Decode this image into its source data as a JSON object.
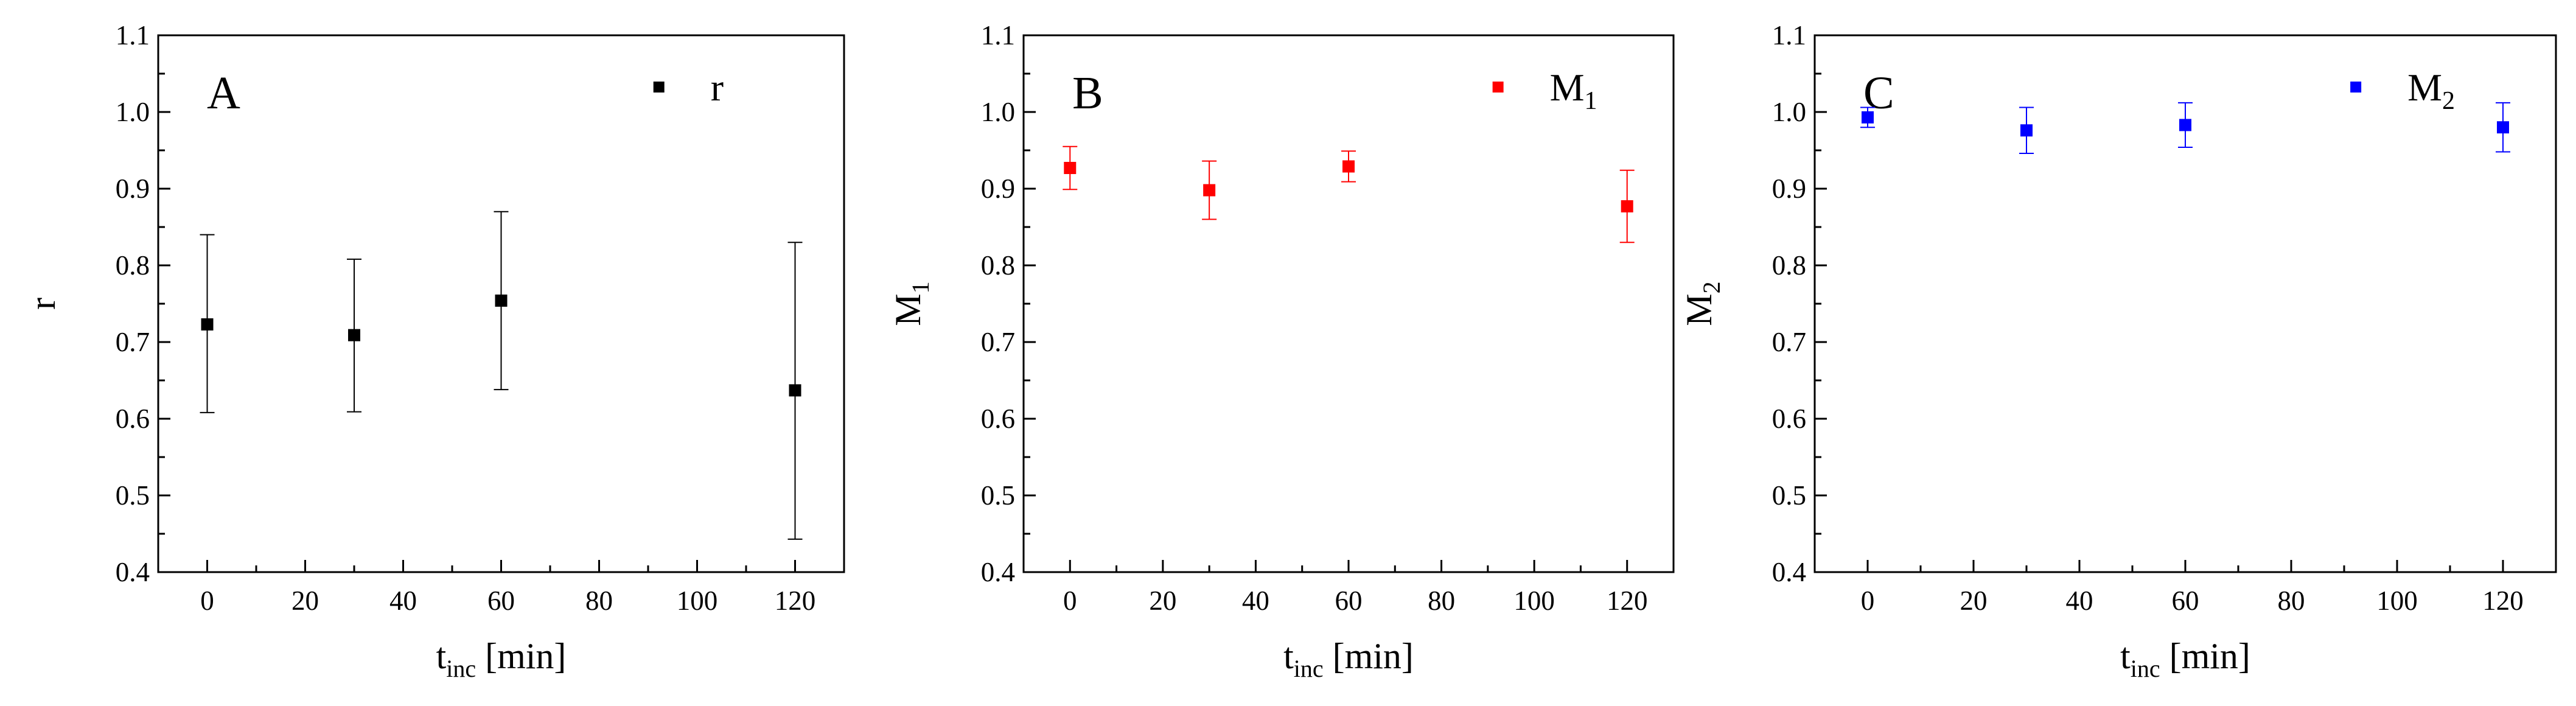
{
  "chart_data": [
    {
      "type": "scatter",
      "panel_label": "A",
      "ylabel": "r",
      "ylabel_sub": "",
      "xlabel": "t",
      "xlabel_sub": "inc",
      "xlabel_unit": " [min]",
      "legend": {
        "text": "r",
        "sub": "",
        "placement": "top-right"
      },
      "color": "#000000",
      "xlim": [
        -10,
        130
      ],
      "ylim": [
        0.4,
        1.1
      ],
      "xticks": [
        0,
        20,
        40,
        60,
        80,
        100,
        120
      ],
      "yticks": [
        0.4,
        0.5,
        0.6,
        0.7,
        0.8,
        0.9,
        1.0,
        1.1
      ],
      "series": [
        {
          "x": [
            0,
            30,
            60,
            120
          ],
          "y": [
            0.723,
            0.709,
            0.754,
            0.637
          ],
          "err_low": [
            0.608,
            0.609,
            0.638,
            0.443
          ],
          "err_high": [
            0.84,
            0.808,
            0.87,
            0.83
          ]
        }
      ]
    },
    {
      "type": "scatter",
      "panel_label": "B",
      "ylabel": "M",
      "ylabel_sub": "1",
      "xlabel": "t",
      "xlabel_sub": "inc",
      "xlabel_unit": " [min]",
      "legend": {
        "text": "M",
        "sub": "1",
        "placement": "top-right"
      },
      "color": "#ff0000",
      "xlim": [
        -10,
        130
      ],
      "ylim": [
        0.4,
        1.1
      ],
      "xticks": [
        0,
        20,
        40,
        60,
        80,
        100,
        120
      ],
      "yticks": [
        0.4,
        0.5,
        0.6,
        0.7,
        0.8,
        0.9,
        1.0,
        1.1
      ],
      "series": [
        {
          "x": [
            0,
            30,
            60,
            120
          ],
          "y": [
            0.927,
            0.898,
            0.929,
            0.877
          ],
          "err_low": [
            0.899,
            0.86,
            0.909,
            0.83
          ],
          "err_high": [
            0.955,
            0.936,
            0.949,
            0.924
          ]
        }
      ]
    },
    {
      "type": "scatter",
      "panel_label": "C",
      "ylabel": "M",
      "ylabel_sub": "2",
      "xlabel": "t",
      "xlabel_sub": "inc",
      "xlabel_unit": " [min]",
      "legend": {
        "text": "M",
        "sub": "2",
        "placement": "top-right"
      },
      "color": "#0000ff",
      "xlim": [
        -10,
        130
      ],
      "ylim": [
        0.4,
        1.1
      ],
      "xticks": [
        0,
        20,
        40,
        60,
        80,
        100,
        120
      ],
      "yticks": [
        0.4,
        0.5,
        0.6,
        0.7,
        0.8,
        0.9,
        1.0,
        1.1
      ],
      "series": [
        {
          "x": [
            0,
            30,
            60,
            120
          ],
          "y": [
            0.993,
            0.976,
            0.983,
            0.98
          ],
          "err_low": [
            0.98,
            0.946,
            0.954,
            0.948
          ],
          "err_high": [
            1.006,
            1.006,
            1.012,
            1.012
          ]
        }
      ]
    }
  ]
}
